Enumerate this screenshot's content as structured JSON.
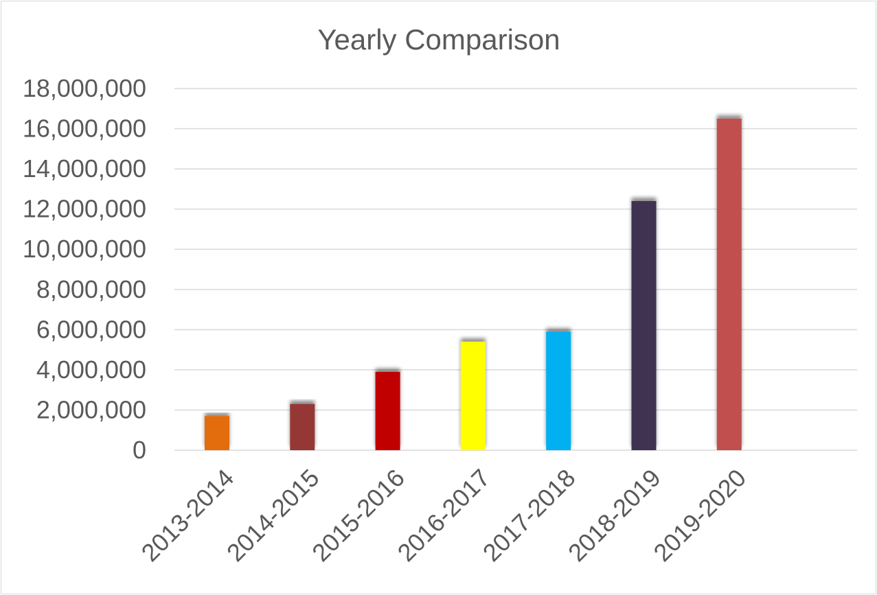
{
  "chart_data": {
    "type": "bar",
    "title": "Yearly Comparison",
    "xlabel": "",
    "ylabel": "",
    "categories": [
      "2013-2014",
      "2014-2015",
      "2015-2016",
      "2016-2017",
      "2017-2018",
      "2018-2019",
      "2019-2020"
    ],
    "values": [
      1700000,
      2300000,
      3900000,
      5400000,
      5900000,
      12400000,
      16500000
    ],
    "colors": [
      "#e36c09",
      "#953735",
      "#c00000",
      "#ffff00",
      "#00b0f0",
      "#3f3151",
      "#c0504d"
    ],
    "ylim": [
      0,
      18000000
    ],
    "yticks": [
      0,
      2000000,
      4000000,
      6000000,
      8000000,
      10000000,
      12000000,
      14000000,
      16000000,
      18000000
    ],
    "ytick_labels": [
      "0",
      "2,000,000",
      "4,000,000",
      "6,000,000",
      "8,000,000",
      "10,000,000",
      "12,000,000",
      "14,000,000",
      "16,000,000",
      "18,000,000"
    ],
    "grid": true,
    "legend": "none"
  }
}
